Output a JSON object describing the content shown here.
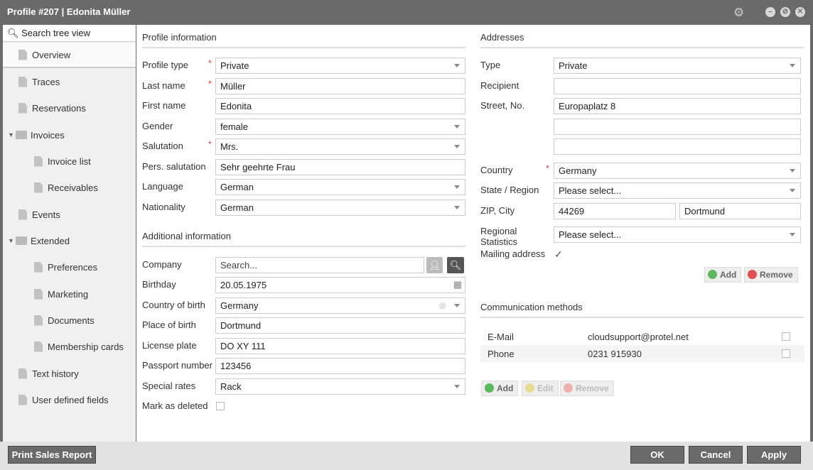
{
  "window": {
    "title": "Profile #207 | Edonita Müller"
  },
  "sidebar": {
    "search_placeholder": "Search tree view",
    "items": [
      {
        "label": "Overview",
        "level": 0,
        "icon": "file-icon",
        "selected": true
      },
      {
        "label": "Traces",
        "level": 0,
        "icon": "file-icon"
      },
      {
        "label": "Reservations",
        "level": 0,
        "icon": "file-icon"
      },
      {
        "label": "Invoices",
        "level": 0,
        "icon": "folder-icon",
        "expanded": true
      },
      {
        "label": "Invoice list",
        "level": 1,
        "icon": "file-icon"
      },
      {
        "label": "Receivables",
        "level": 1,
        "icon": "file-icon"
      },
      {
        "label": "Events",
        "level": 0,
        "icon": "file-icon"
      },
      {
        "label": "Extended",
        "level": 0,
        "icon": "folder-icon",
        "expanded": true
      },
      {
        "label": "Preferences",
        "level": 1,
        "icon": "file-icon"
      },
      {
        "label": "Marketing",
        "level": 1,
        "icon": "file-icon"
      },
      {
        "label": "Documents",
        "level": 1,
        "icon": "file-icon"
      },
      {
        "label": "Membership cards",
        "level": 1,
        "icon": "file-icon"
      },
      {
        "label": "Text history",
        "level": 0,
        "icon": "file-icon"
      },
      {
        "label": "User defined fields",
        "level": 0,
        "icon": "file-icon"
      }
    ]
  },
  "profile": {
    "title": "Profile information",
    "fields": [
      {
        "label": "Profile type",
        "value": "Private",
        "type": "select",
        "required": true
      },
      {
        "label": "Last name",
        "value": "Müller",
        "type": "text",
        "required": true
      },
      {
        "label": "First name",
        "value": "Edonita",
        "type": "text"
      },
      {
        "label": "Gender",
        "value": "female",
        "type": "select"
      },
      {
        "label": "Salutation",
        "value": "Mrs.",
        "type": "select",
        "required": true
      },
      {
        "label": "Pers. salutation",
        "value": "Sehr geehrte Frau",
        "type": "text"
      },
      {
        "label": "Language",
        "value": "German",
        "type": "select"
      },
      {
        "label": "Nationality",
        "value": "German",
        "type": "select"
      }
    ]
  },
  "additional": {
    "title": "Additional information",
    "fields": [
      {
        "label": "Company",
        "value": "Search...",
        "type": "company"
      },
      {
        "label": "Birthday",
        "value": "20.05.1975",
        "type": "date"
      },
      {
        "label": "Country of birth",
        "value": "Germany",
        "type": "select-clear"
      },
      {
        "label": "Place of birth",
        "value": "Dortmund",
        "type": "text"
      },
      {
        "label": "License plate",
        "value": "DO XY 111",
        "type": "text"
      },
      {
        "label": "Passport number",
        "value": "123456",
        "type": "text"
      },
      {
        "label": "Special rates",
        "value": "Rack",
        "type": "select"
      },
      {
        "label": "Mark as deleted",
        "value": false,
        "type": "checkbox"
      }
    ]
  },
  "addresses": {
    "title": "Addresses",
    "type_label": "Type",
    "type_value": "Private",
    "recipient_label": "Recipient",
    "recipient_value": "",
    "street_label": "Street, No.",
    "street_value": "Europaplatz 8",
    "street2": "",
    "street3": "",
    "country_label": "Country",
    "country_value": "Germany",
    "state_label": "State / Region",
    "state_value": "Please select...",
    "zip_label": "ZIP, City",
    "zip_value": "44269",
    "city_value": "Dortmund",
    "regional_label": "Regional Statistics",
    "regional_value": "Please select...",
    "mailing_label": "Mailing address",
    "mailing_checked": true,
    "add": "Add",
    "remove": "Remove"
  },
  "communication": {
    "title": "Communication methods",
    "rows": [
      {
        "type": "E-Mail",
        "value": "cloudsupport@protel.net",
        "checked": false
      },
      {
        "type": "Phone",
        "value": "0231 915930",
        "checked": false
      }
    ],
    "add": "Add",
    "edit": "Edit",
    "remove": "Remove"
  },
  "footer": {
    "print": "Print Sales Report",
    "ok": "OK",
    "cancel": "Cancel",
    "apply": "Apply"
  }
}
